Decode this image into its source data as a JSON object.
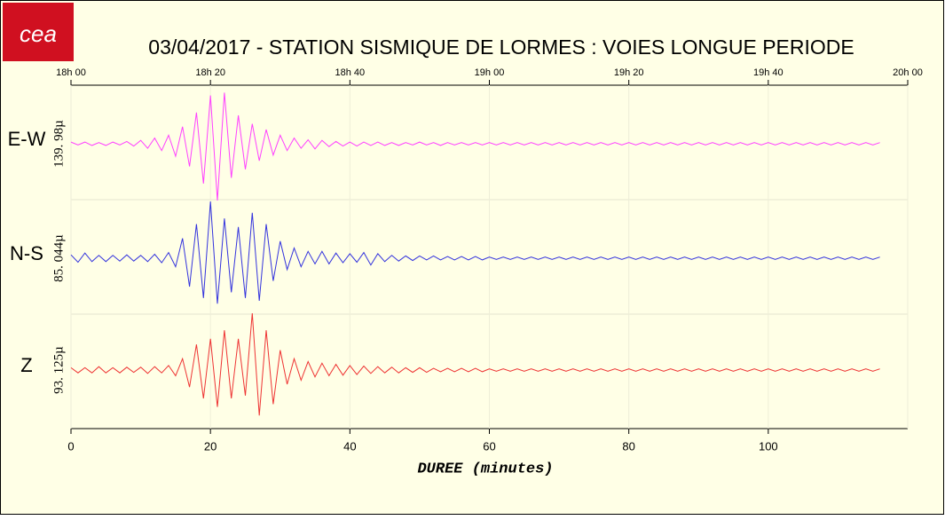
{
  "chart_data": {
    "type": "line",
    "logo": "cea",
    "title": "03/04/2017  -  STATION SISMIQUE DE LORMES : VOIES LONGUE PERIODE",
    "xlabel": "DUREE (minutes)",
    "xlim": [
      0,
      120
    ],
    "xticks": [
      0,
      20,
      40,
      60,
      80,
      100
    ],
    "top_xticks": [
      {
        "value": 0,
        "label": "18h 00"
      },
      {
        "value": 20,
        "label": "18h 20"
      },
      {
        "value": 40,
        "label": "18h 40"
      },
      {
        "value": 60,
        "label": "19h 00"
      },
      {
        "value": 80,
        "label": "19h 20"
      },
      {
        "value": 100,
        "label": "19h 40"
      },
      {
        "value": 120,
        "label": "20h 00"
      }
    ],
    "ylim": [
      -1,
      1
    ],
    "grid": true,
    "x": [
      0,
      1,
      2,
      3,
      4,
      5,
      6,
      7,
      8,
      9,
      10,
      11,
      12,
      13,
      14,
      15,
      16,
      17,
      18,
      19,
      20,
      21,
      22,
      23,
      24,
      25,
      26,
      27,
      28,
      29,
      30,
      31,
      32,
      33,
      34,
      35,
      36,
      37,
      38,
      39,
      40,
      41,
      42,
      43,
      44,
      45,
      46,
      47,
      48,
      49,
      50,
      51,
      52,
      53,
      54,
      55,
      56,
      57,
      58,
      59,
      60,
      61,
      62,
      63,
      64,
      65,
      66,
      67,
      68,
      69,
      70,
      71,
      72,
      73,
      74,
      75,
      76,
      77,
      78,
      79,
      80,
      81,
      82,
      83,
      84,
      85,
      86,
      87,
      88,
      89,
      90,
      91,
      92,
      93,
      94,
      95,
      96,
      97,
      98,
      99,
      100,
      101,
      102,
      103,
      104,
      105,
      106,
      107,
      108,
      109,
      110,
      111,
      112,
      113,
      114,
      115,
      116
    ],
    "series": [
      {
        "name": "E-W",
        "scale_label": "139. 98µ",
        "color": "#ff40ff",
        "values": [
          0.03,
          -0.02,
          0.03,
          -0.03,
          0.02,
          -0.03,
          0.03,
          -0.02,
          0.04,
          -0.04,
          0.06,
          -0.08,
          0.1,
          -0.12,
          0.15,
          -0.22,
          0.3,
          -0.4,
          0.55,
          -0.7,
          0.85,
          -1,
          0.9,
          -0.6,
          0.5,
          -0.45,
          0.35,
          -0.3,
          0.25,
          -0.2,
          0.15,
          -0.12,
          0.1,
          -0.08,
          0.07,
          -0.09,
          0.06,
          -0.05,
          0.04,
          -0.04,
          0.03,
          -0.04,
          0.03,
          -0.03,
          0.03,
          -0.03,
          0.02,
          -0.03,
          0.02,
          -0.02,
          0.03,
          -0.02,
          0.02,
          -0.03,
          0.02,
          -0.02,
          0.02,
          -0.02,
          0.02,
          -0.02,
          0.02,
          -0.02,
          0.02,
          -0.02,
          0.02,
          -0.02,
          0.02,
          -0.02,
          0.02,
          -0.02,
          0.02,
          -0.02,
          0.02,
          -0.02,
          0.02,
          -0.02,
          0.02,
          -0.02,
          0.02,
          -0.02,
          0.02,
          -0.02,
          0.02,
          -0.02,
          0.02,
          -0.02,
          0.02,
          -0.02,
          0.02,
          -0.02,
          0.02,
          -0.02,
          0.02,
          -0.02,
          0.02,
          -0.02,
          0.02,
          -0.02,
          0.02,
          -0.02,
          0.02,
          -0.02,
          0.02,
          -0.02,
          0.02,
          -0.02,
          0.02,
          -0.02,
          0.02,
          -0.02,
          0.02,
          -0.02,
          0.02,
          -0.02,
          0.02,
          -0.02,
          0.02
        ]
      },
      {
        "name": "N-S",
        "scale_label": "85. 044µ",
        "color": "#3333dd",
        "values": [
          0.06,
          -0.07,
          0.09,
          -0.06,
          0.05,
          -0.06,
          0.05,
          -0.05,
          0.06,
          -0.05,
          0.05,
          -0.06,
          0.07,
          -0.08,
          0.1,
          -0.15,
          0.35,
          -0.5,
          0.6,
          -0.7,
          1,
          -0.8,
          0.7,
          -0.6,
          0.55,
          -0.7,
          0.8,
          -0.75,
          0.6,
          -0.4,
          0.3,
          -0.2,
          0.18,
          -0.15,
          0.12,
          -0.1,
          0.12,
          -0.1,
          0.09,
          -0.08,
          0.08,
          -0.07,
          0.1,
          -0.12,
          0.08,
          -0.06,
          0.05,
          -0.05,
          0.04,
          -0.04,
          0.04,
          -0.03,
          0.04,
          -0.03,
          0.03,
          -0.03,
          0.03,
          -0.03,
          0.03,
          -0.03,
          0.02,
          -0.02,
          0.02,
          -0.02,
          0.02,
          -0.02,
          0.02,
          -0.02,
          0.02,
          -0.02,
          0.02,
          -0.02,
          0.02,
          -0.02,
          0.02,
          -0.02,
          0.02,
          -0.02,
          0.02,
          -0.02,
          0.02,
          -0.02,
          0.02,
          -0.02,
          0.02,
          -0.02,
          0.02,
          -0.02,
          0.02,
          -0.02,
          0.02,
          -0.02,
          0.02,
          -0.02,
          0.02,
          -0.02,
          0.02,
          -0.02,
          0.02,
          -0.02,
          0.02,
          -0.02,
          0.02,
          -0.02,
          0.02,
          -0.02,
          0.02,
          -0.02,
          0.02,
          -0.02,
          0.02,
          -0.02,
          0.02,
          -0.02,
          0.02,
          -0.02,
          0.02
        ]
      },
      {
        "name": "Z",
        "scale_label": "93. 125µ",
        "color": "#ee3333",
        "values": [
          0.04,
          -0.05,
          0.04,
          -0.05,
          0.06,
          -0.05,
          0.04,
          -0.05,
          0.05,
          -0.04,
          0.05,
          -0.06,
          0.06,
          -0.05,
          0.08,
          -0.1,
          0.2,
          -0.3,
          0.45,
          -0.5,
          0.55,
          -0.65,
          0.7,
          -0.5,
          0.55,
          -0.45,
          1,
          -0.8,
          0.7,
          -0.6,
          0.35,
          -0.25,
          0.2,
          -0.18,
          0.15,
          -0.12,
          0.12,
          -0.1,
          0.1,
          -0.09,
          0.08,
          -0.08,
          0.07,
          -0.06,
          0.06,
          -0.05,
          0.05,
          -0.05,
          0.04,
          -0.04,
          0.04,
          -0.04,
          0.03,
          -0.03,
          0.03,
          -0.03,
          0.03,
          -0.03,
          0.03,
          -0.03,
          0.02,
          -0.02,
          0.02,
          -0.02,
          0.02,
          -0.02,
          0.02,
          -0.02,
          0.02,
          -0.02,
          0.02,
          -0.02,
          0.02,
          -0.02,
          0.02,
          -0.02,
          0.02,
          -0.02,
          0.02,
          -0.02,
          0.02,
          -0.02,
          0.02,
          -0.02,
          0.02,
          -0.02,
          0.02,
          -0.02,
          0.02,
          -0.02,
          0.02,
          -0.02,
          0.02,
          -0.02,
          0.02,
          -0.02,
          0.02,
          -0.02,
          0.02,
          -0.02,
          0.02,
          -0.02,
          0.02,
          -0.02,
          0.02,
          -0.02,
          0.02,
          -0.02,
          0.02,
          -0.02,
          0.02,
          -0.02,
          0.02,
          -0.02,
          0.02,
          -0.02,
          0.02
        ]
      }
    ]
  }
}
